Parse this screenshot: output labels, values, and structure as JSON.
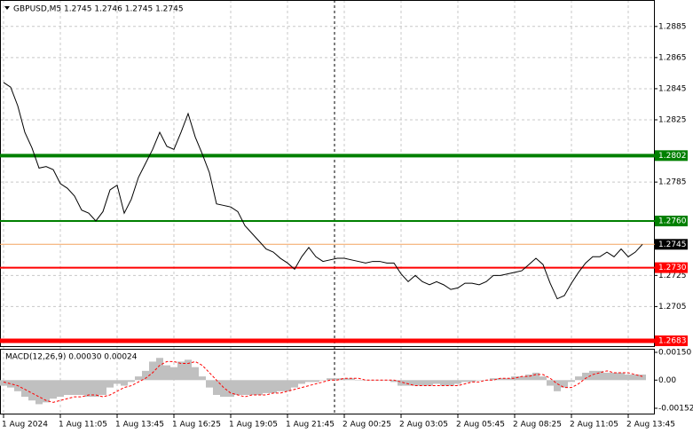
{
  "chart_data": [
    {
      "type": "line",
      "title": "GBPUSD,M5  1.2745 1.2746 1.2745 1.2745",
      "color": "#000000",
      "categories": [
        "1 Aug 2024",
        null,
        null,
        null,
        null,
        null,
        null,
        null,
        "1 Aug 11:05",
        null,
        null,
        null,
        null,
        null,
        null,
        null,
        "1 Aug 13:45",
        null,
        null,
        null,
        null,
        null,
        null,
        null,
        "1 Aug 16:25",
        null,
        null,
        null,
        null,
        null,
        null,
        null,
        "1 Aug 19:05",
        null,
        null,
        null,
        null,
        null,
        null,
        null,
        "1 Aug 21:45",
        null,
        null,
        null,
        null,
        null,
        null,
        null,
        "2 Aug 00:25",
        null,
        null,
        null,
        null,
        null,
        null,
        null,
        "2 Aug 03:05",
        null,
        null,
        null,
        null,
        null,
        null,
        null,
        "2 Aug 05:45",
        null,
        null,
        null,
        null,
        null,
        null,
        null,
        "2 Aug 08:25",
        null,
        null,
        null,
        null,
        null,
        null,
        null,
        "2 Aug 11:05",
        null,
        null,
        null,
        null,
        null,
        null,
        null,
        "2 Aug 13:45",
        null,
        null
      ],
      "values": [
        1.2849,
        1.2846,
        1.2834,
        1.2817,
        1.2807,
        1.2794,
        1.2795,
        1.2793,
        1.2784,
        1.2781,
        1.2776,
        1.2767,
        1.2765,
        1.276,
        1.2766,
        1.278,
        1.2783,
        1.2765,
        1.2774,
        1.2788,
        1.2797,
        1.2806,
        1.2817,
        1.2808,
        1.2806,
        1.2817,
        1.2829,
        1.2814,
        1.2803,
        1.2791,
        1.2771,
        1.277,
        1.2769,
        1.2766,
        1.2757,
        1.2752,
        1.2747,
        1.2742,
        1.274,
        1.2736,
        1.2733,
        1.2729,
        1.2737,
        1.2743,
        1.2737,
        1.2734,
        1.2735,
        1.2736,
        1.2736,
        1.2735,
        1.2734,
        1.2733,
        1.2734,
        1.2734,
        1.2733,
        1.2733,
        1.2726,
        1.2721,
        1.2725,
        1.2721,
        1.2719,
        1.2721,
        1.2719,
        1.2716,
        1.2717,
        1.272,
        1.272,
        1.2719,
        1.2721,
        1.2725,
        1.2725,
        1.2726,
        1.2727,
        1.2728,
        1.2732,
        1.2736,
        1.2732,
        1.272,
        1.271,
        1.2712,
        1.272,
        1.2727,
        1.2733,
        1.2737,
        1.2737,
        1.274,
        1.2737,
        1.2742,
        1.2737,
        1.274,
        1.2745
      ],
      "ylim": [
        1.2679,
        1.2902
      ],
      "yticks": [
        1.2885,
        1.2865,
        1.2845,
        1.2825,
        1.2785,
        1.2725,
        1.2705
      ],
      "grid": true,
      "levels": [
        {
          "value": 1.2802,
          "color": "#008000",
          "line_width": 4
        },
        {
          "value": 1.276,
          "label": "1.2760",
          "color": "#008000",
          "line_width": 2
        },
        {
          "value": 1.2745,
          "color": "#f4a460",
          "line_width": 1,
          "label_color": "#000000"
        },
        {
          "value": 1.273,
          "label": "1.2730",
          "color": "#ff0000",
          "line_width": 2
        },
        {
          "value": 1.2683,
          "color": "#ff0000",
          "line_width": 5
        }
      ]
    },
    {
      "type": "macd",
      "title": "MACD(12,26,9) 0.00030 0.00024",
      "ylim": [
        -0.00152,
        0.0015
      ],
      "yticks": [
        {
          "value": 0.0015,
          "label": "0.00150"
        },
        {
          "value": 0,
          "label": "0.00"
        },
        -0.00152
      ],
      "series": [
        {
          "type": "bar",
          "color": "#c0c0c0",
          "values": [
            -0.0003,
            -0.0004,
            -0.0006,
            -0.0009,
            -0.0011,
            -0.0013,
            -0.0012,
            -0.001,
            -0.0009,
            -0.0008,
            -0.0008,
            -0.0008,
            -0.0009,
            -0.0009,
            -0.0008,
            -0.0004,
            -0.0002,
            -0.0003,
            -0.0001,
            0.0002,
            0.0005,
            0.001,
            0.0012,
            0.0008,
            0.0007,
            0.001,
            0.0011,
            0.0007,
            0.0002,
            -0.0004,
            -0.0008,
            -0.0009,
            -0.0009,
            -0.0008,
            -0.0008,
            -0.0008,
            -0.0008,
            -0.0007,
            -0.0007,
            -0.0006,
            -0.0006,
            -0.0004,
            -0.0002,
            -0.0001,
            -0.0001,
            0,
            0.0001,
            0.0001,
            0.0001,
            0.0001,
            0,
            0,
            0,
            0,
            0,
            -0.0001,
            -0.0003,
            -0.0003,
            -0.0003,
            -0.0003,
            -0.0003,
            -0.0002,
            -0.0003,
            -0.0003,
            -0.0002,
            -0.0001,
            -0.0001,
            0,
            0,
            0.0001,
            0.0001,
            0.0001,
            0.0002,
            0.0002,
            0.0003,
            0.0004,
            0.0002,
            -0.0003,
            -0.0006,
            -0.0004,
            -0.0001,
            0.0002,
            0.0004,
            0.0005,
            0.0005,
            0.0004,
            0.0004,
            0.0004,
            0.0003,
            0.0003,
            0.0003
          ]
        },
        {
          "type": "line",
          "color": "#ff0000",
          "values": [
            -0.0001,
            -0.0002,
            -0.0003,
            -0.0005,
            -0.0007,
            -0.0009,
            -0.0011,
            -0.0012,
            -0.0011,
            -0.001,
            -0.0009,
            -0.0009,
            -0.0008,
            -0.0008,
            -0.0009,
            -0.0008,
            -0.0006,
            -0.0004,
            -0.0003,
            -0.0001,
            0.0001,
            0.0004,
            0.0008,
            0.001,
            0.001,
            0.0009,
            0.0009,
            0.001,
            0.0008,
            0.0004,
            0,
            -0.0004,
            -0.0007,
            -0.0008,
            -0.0009,
            -0.0008,
            -0.0008,
            -0.0008,
            -0.0007,
            -0.0007,
            -0.0006,
            -0.0005,
            -0.0004,
            -0.0003,
            -0.0002,
            -0.0001,
            0,
            0,
            0.0001,
            0.0001,
            0.0001,
            0,
            0,
            0,
            0,
            0,
            -0.0001,
            -0.0002,
            -0.0003,
            -0.0003,
            -0.0003,
            -0.0003,
            -0.0003,
            -0.0003,
            -0.0003,
            -0.0002,
            -0.0001,
            -0.0001,
            0,
            0,
            0.0001,
            0.0001,
            0.0001,
            0.0002,
            0.0002,
            0.0003,
            0.0003,
            0.0001,
            -0.0002,
            -0.0004,
            -0.0004,
            -0.0002,
            0.0001,
            0.0003,
            0.0004,
            0.0005,
            0.0004,
            0.0004,
            0.0004,
            0.0003,
            0.0002
          ]
        }
      ]
    }
  ]
}
